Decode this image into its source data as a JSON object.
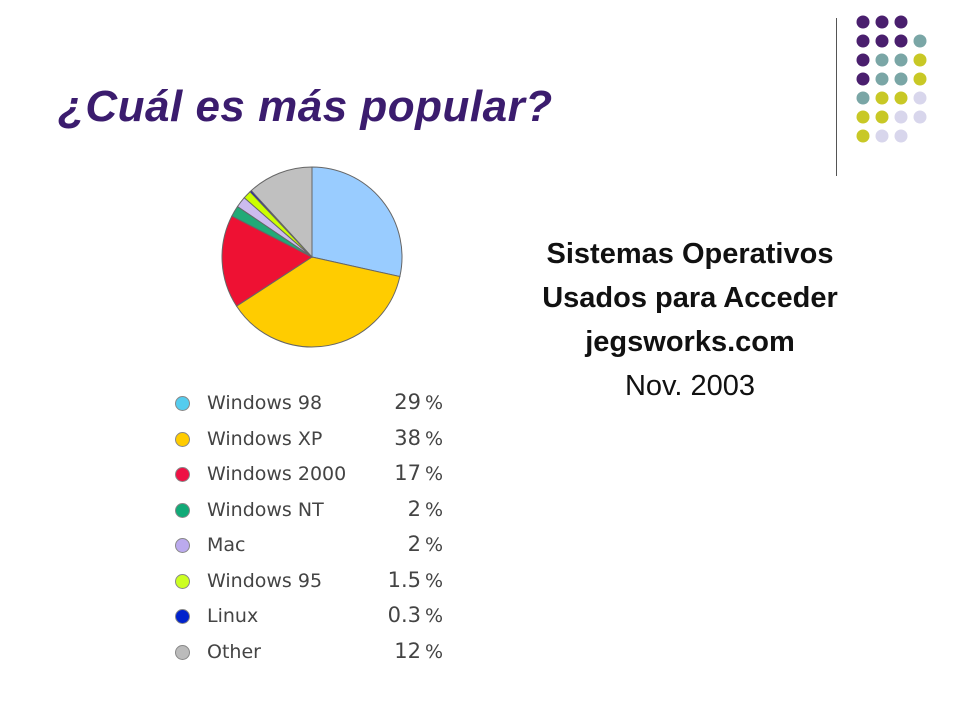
{
  "slide": {
    "title": "¿Cuál es más popular?",
    "caption": {
      "line1": "Sistemas Operativos",
      "line2": "Usados para Acceder",
      "line3": "jegsworks.com",
      "line4": "Nov. 2003"
    }
  },
  "colors": {
    "title": "#3b1c6e",
    "deco_purple": "#4a1f6e",
    "deco_teal": "#7aa6a6",
    "deco_lime": "#c8c826",
    "deco_lavender": "#d8d6ec"
  },
  "chart_data": {
    "type": "pie",
    "categories": [
      "Windows 98",
      "Windows XP",
      "Windows 2000",
      "Windows NT",
      "Mac",
      "Windows 95",
      "Linux",
      "Other"
    ],
    "values": [
      29,
      38,
      17,
      2,
      2,
      1.5,
      0.3,
      12
    ],
    "value_labels": [
      "29",
      "38",
      "17",
      "2",
      "2",
      "1.5",
      "0.3",
      "12"
    ],
    "unit": "%",
    "colors": [
      "#99ccff",
      "#ffcc00",
      "#ee1133",
      "#22aa77",
      "#ccbbee",
      "#ccff00",
      "#0000cc",
      "#c0c0c0"
    ],
    "legend_dot_colors": [
      "#55ccee",
      "#ffcc00",
      "#ee1144",
      "#11aa77",
      "#bbaaee",
      "#ccff22",
      "#0022cc",
      "#bbbbbb"
    ],
    "legend_position": "below"
  }
}
